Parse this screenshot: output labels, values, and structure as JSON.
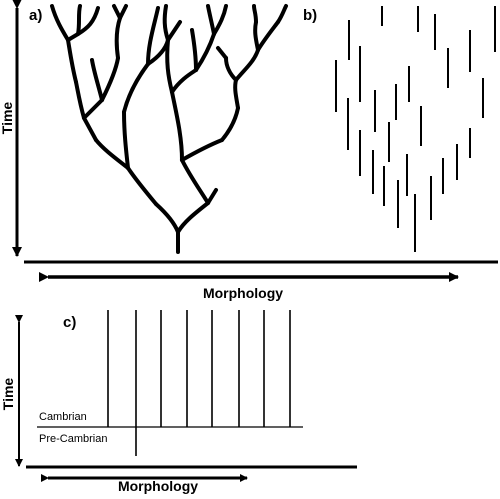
{
  "panels": {
    "a": {
      "label": "a)"
    },
    "b": {
      "label": "b)"
    },
    "c": {
      "label": "c)"
    }
  },
  "axes": {
    "time_label_top": "Time",
    "morphology_label_top": "Morphology",
    "time_label_bottom": "Time",
    "morphology_label_bottom": "Morphology"
  },
  "boundary": {
    "above": "Cambrian",
    "below": "Pre-Cambrian"
  },
  "colors": {
    "ink": "#000000",
    "background": "#ffffff"
  }
}
